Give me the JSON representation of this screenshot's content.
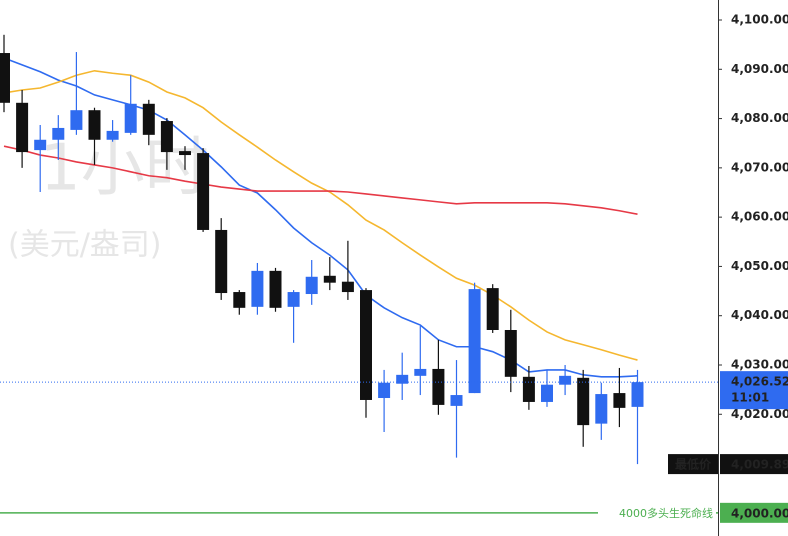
{
  "chart_data": {
    "type": "candlestick",
    "watermark": [
      "1小时",
      "(美元/盎司)"
    ],
    "open": [
      4093.3,
      4083.2,
      4073.6,
      4075.7,
      4077.7,
      4081.7,
      4075.7,
      4077.1,
      4083.0,
      4079.5,
      4073.4,
      4073.0,
      4057.4,
      4044.8,
      4041.8,
      4049.1,
      4041.8,
      4044.4,
      4048.1,
      4046.9,
      4045.2,
      4023.3,
      4026.2,
      4027.8,
      4029.2,
      4021.7,
      4024.3,
      4045.6,
      4037.1,
      4027.6,
      4022.5,
      4026.0,
      4027.4,
      4018.1,
      4024.3,
      4021.5
    ],
    "high": [
      4097.0,
      4085.8,
      4078.7,
      4080.7,
      4093.5,
      4082.2,
      4079.7,
      4088.8,
      4083.8,
      4080.1,
      4074.4,
      4074.0,
      4059.8,
      4045.2,
      4050.7,
      4049.7,
      4045.2,
      4051.3,
      4051.9,
      4055.2,
      4045.6,
      4029.0,
      4032.5,
      4037.9,
      4035.1,
      4031.0,
      4046.7,
      4046.4,
      4041.2,
      4029.8,
      4029.0,
      4030.0,
      4029.0,
      4026.4,
      4029.4,
      4029.0
    ],
    "low": [
      4081.3,
      4070.0,
      4065.1,
      4071.6,
      4076.7,
      4070.6,
      4075.3,
      4076.7,
      4074.6,
      4069.6,
      4069.6,
      4057.0,
      4043.2,
      4040.2,
      4040.2,
      4040.8,
      4034.5,
      4042.2,
      4045.2,
      4043.2,
      4019.3,
      4016.4,
      4022.9,
      4023.9,
      4019.9,
      4011.2,
      4024.3,
      4036.5,
      4024.5,
      4020.9,
      4021.5,
      4023.9,
      4013.4,
      4014.8,
      4017.4,
      4009.89
    ],
    "close": [
      4083.2,
      4073.2,
      4075.7,
      4078.1,
      4081.7,
      4075.7,
      4077.5,
      4083.0,
      4076.7,
      4073.2,
      4072.6,
      4057.4,
      4044.6,
      4041.6,
      4049.1,
      4041.6,
      4044.8,
      4047.9,
      4046.7,
      4044.8,
      4022.9,
      4026.4,
      4028.0,
      4029.2,
      4021.9,
      4023.9,
      4045.4,
      4037.1,
      4027.6,
      4022.5,
      4026.0,
      4027.8,
      4017.8,
      4024.1,
      4021.3,
      4026.52
    ],
    "up_color": "#2f6bf0",
    "down_color": "#111111",
    "series": [
      {
        "color": "#2f6bf0",
        "values": [
          4092.3,
          4090.9,
          4089.5,
          4087.8,
          4086.6,
          4084.8,
          4083.8,
          4082.8,
          4081.7,
          4079.7,
          4076.7,
          4073.6,
          4070.2,
          4066.5,
          4064.9,
          4061.5,
          4057.8,
          4054.8,
          4052.3,
          4049.3,
          4044.2,
          4041.6,
          4039.6,
          4038.1,
          4035.1,
          4033.7,
          4033.7,
          4032.7,
          4031.0,
          4028.6,
          4029.0,
          4029.0,
          4028.0,
          4027.6,
          4027.6,
          4027.8
        ]
      },
      {
        "color": "#f5b72f",
        "values": [
          4085.2,
          4085.8,
          4086.2,
          4087.4,
          4088.8,
          4089.7,
          4089.2,
          4088.8,
          4087.4,
          4085.4,
          4084.2,
          4082.2,
          4079.3,
          4076.7,
          4074.2,
          4071.6,
          4069.2,
          4066.9,
          4065.1,
          4062.5,
          4059.4,
          4057.4,
          4054.8,
          4052.3,
          4049.9,
          4047.6,
          4046.2,
          4044.2,
          4041.8,
          4039.1,
          4036.7,
          4035.1,
          4034.1,
          4033.1,
          4032.0,
          4031.0
        ]
      },
      {
        "color": "#e63946",
        "values": [
          4074.4,
          4073.6,
          4072.6,
          4072.0,
          4071.2,
          4070.6,
          4070.0,
          4069.2,
          4068.4,
          4068.0,
          4067.3,
          4066.7,
          4066.1,
          4065.7,
          4065.3,
          4065.3,
          4065.3,
          4065.3,
          4065.3,
          4065.1,
          4064.7,
          4064.3,
          4063.9,
          4063.5,
          4063.1,
          4062.7,
          4062.9,
          4062.9,
          4062.9,
          4062.9,
          4062.9,
          4062.7,
          4062.3,
          4061.9,
          4061.3,
          4060.6
        ]
      }
    ],
    "ylim": [
      3995.3,
      4104.06
    ],
    "yticks": [
      {
        "value": 4100,
        "label": "4,100.00"
      },
      {
        "value": 4090,
        "label": "4,090.00"
      },
      {
        "value": 4080,
        "label": "4,080.00"
      },
      {
        "value": 4070,
        "label": "4,070.00"
      },
      {
        "value": 4060,
        "label": "4,060.00"
      },
      {
        "value": 4050,
        "label": "4,050.00"
      },
      {
        "value": 4040,
        "label": "4,040.00"
      },
      {
        "value": 4030,
        "label": "4,030.00"
      },
      {
        "value": 4020,
        "label": "4,020.00"
      }
    ],
    "grid": false,
    "price_line": {
      "value": 4026.52,
      "value_label": "4,026.52",
      "countdown": "11:01",
      "color": "#2f6bf0"
    },
    "low_marker": {
      "label": "最低价",
      "value": 4009.89,
      "value_label": "4,009.89"
    },
    "level_line": {
      "label": "4000多头生死命线",
      "value": 4000,
      "value_label": "4,000.00",
      "color": "#4caf50"
    }
  }
}
